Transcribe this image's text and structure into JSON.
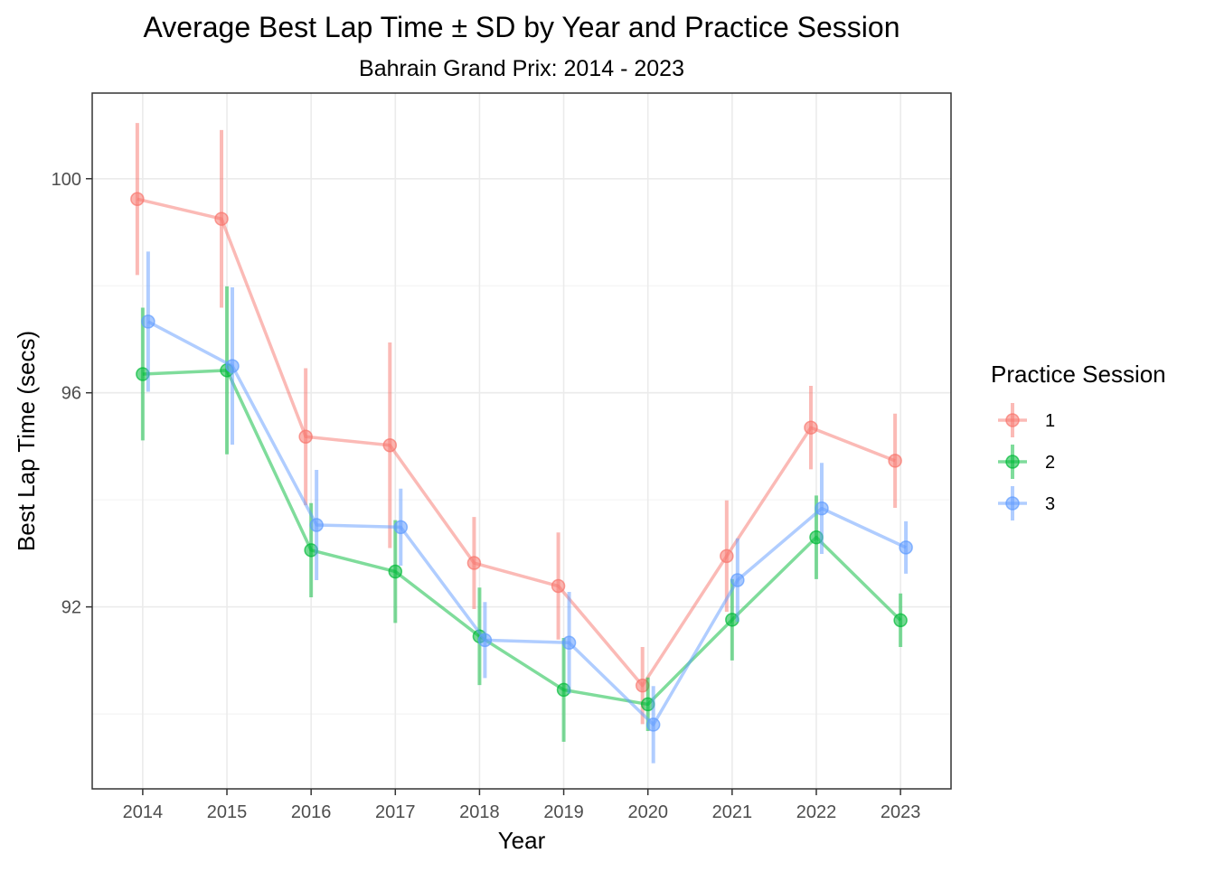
{
  "chart_data": {
    "type": "line",
    "title": "Average Best Lap Time ± SD by Year and Practice Session",
    "subtitle": "Bahrain Grand Prix: 2014 - 2023",
    "xlabel": "Year",
    "ylabel": "Best Lap Time (secs)",
    "x": [
      2014,
      2015,
      2016,
      2017,
      2018,
      2019,
      2020,
      2021,
      2022,
      2023
    ],
    "x_tick_labels": [
      "2014",
      "2015",
      "2016",
      "2017",
      "2018",
      "2019",
      "2020",
      "2021",
      "2022",
      "2023"
    ],
    "y_ticks": [
      92,
      96,
      100
    ],
    "y_tick_labels": [
      "92",
      "96",
      "100"
    ],
    "ylim": [
      88.6,
      101.6
    ],
    "grid": true,
    "error_bars": "± SD",
    "legend": {
      "title": "Practice Session",
      "placement": "right"
    },
    "series": [
      {
        "name": "1",
        "color": "#F8766D",
        "values": [
          99.62,
          99.25,
          95.18,
          95.02,
          92.82,
          92.39,
          90.53,
          92.95,
          95.35,
          94.73
        ],
        "sd": [
          1.42,
          1.66,
          1.28,
          1.92,
          0.86,
          1.0,
          0.72,
          1.04,
          0.78,
          0.88
        ]
      },
      {
        "name": "2",
        "color": "#00BA38",
        "values": [
          96.35,
          96.42,
          93.06,
          92.66,
          91.45,
          90.45,
          90.18,
          91.76,
          93.3,
          91.75
        ],
        "sd": [
          1.24,
          1.57,
          0.88,
          0.96,
          0.91,
          0.97,
          0.5,
          0.76,
          0.78,
          0.5
        ]
      },
      {
        "name": "3",
        "color": "#619CFF",
        "values": [
          97.33,
          96.5,
          93.53,
          93.49,
          91.38,
          91.33,
          89.8,
          92.5,
          93.84,
          93.11
        ],
        "sd": [
          1.31,
          1.47,
          1.03,
          0.72,
          0.71,
          0.95,
          0.72,
          0.78,
          0.85,
          0.49
        ]
      }
    ]
  }
}
